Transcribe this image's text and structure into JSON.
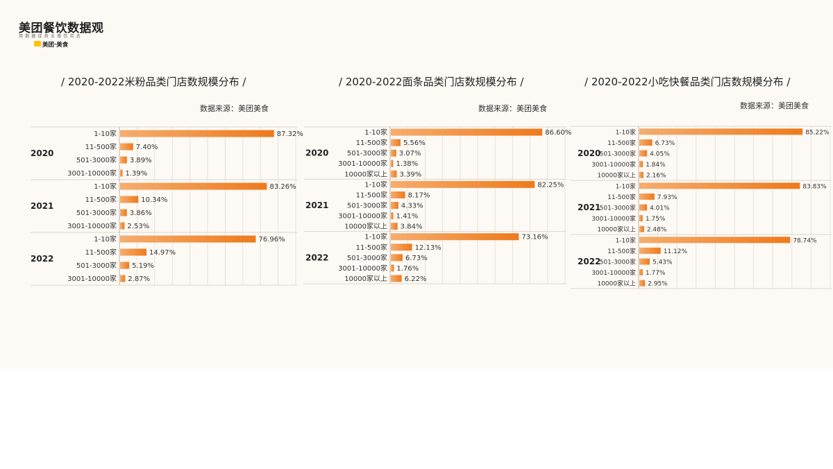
{
  "logo": {
    "title": "美团餐饮数据观",
    "tagline": "用数据促商业餐饮百态",
    "brand": "美团·美食"
  },
  "colors": {
    "bar_gradient_start": "#f5ad6e",
    "bar_gradient_end": "#ee7a1c",
    "background": "#fdf9f4"
  },
  "chart_data": [
    {
      "type": "bar",
      "title": "/ 2020-2022米粉品类门店数规模分布 /",
      "source": "数据来源：美团美食",
      "orientation": "horizontal",
      "xlim": [
        0,
        100
      ],
      "groups": [
        {
          "year": "2020",
          "categories": [
            "1-10家",
            "11-500家",
            "501-3000家",
            "3001-10000家"
          ],
          "values": [
            87.32,
            7.4,
            3.89,
            1.39
          ],
          "labels": [
            "87.32%",
            "7.40%",
            "3.89%",
            "1.39%"
          ]
        },
        {
          "year": "2021",
          "categories": [
            "1-10家",
            "11-500家",
            "501-3000家",
            "3001-10000家"
          ],
          "values": [
            83.26,
            10.34,
            3.86,
            2.53
          ],
          "labels": [
            "83.26%",
            "10.34%",
            "3.86%",
            "2.53%"
          ]
        },
        {
          "year": "2022",
          "categories": [
            "1-10家",
            "11-500家",
            "501-3000家",
            "3001-10000家"
          ],
          "values": [
            76.96,
            14.97,
            5.19,
            2.87
          ],
          "labels": [
            "76.96%",
            "14.97%",
            "5.19%",
            "2.87%"
          ]
        }
      ]
    },
    {
      "type": "bar",
      "title": "/ 2020-2022面条品类门店数规模分布 /",
      "source": "数据来源：美团美食",
      "orientation": "horizontal",
      "xlim": [
        0,
        100
      ],
      "groups": [
        {
          "year": "2020",
          "categories": [
            "1-10家",
            "11-500家",
            "501-3000家",
            "3001-10000家",
            "10000家以上"
          ],
          "values": [
            86.6,
            5.56,
            3.07,
            1.38,
            3.39
          ],
          "labels": [
            "86.60%",
            "5.56%",
            "3.07%",
            "1.38%",
            "3.39%"
          ]
        },
        {
          "year": "2021",
          "categories": [
            "1-10家",
            "11-500家",
            "501-3000家",
            "3001-10000家",
            "10000家以上"
          ],
          "values": [
            82.25,
            8.17,
            4.33,
            1.41,
            3.84
          ],
          "labels": [
            "82.25%",
            "8.17%",
            "4.33%",
            "1.41%",
            "3.84%"
          ]
        },
        {
          "year": "2022",
          "categories": [
            "1-10家",
            "11-500家",
            "501-3000家",
            "3001-10000家",
            "10000家以上"
          ],
          "values": [
            73.16,
            12.13,
            6.73,
            1.76,
            6.22
          ],
          "labels": [
            "73.16%",
            "12.13%",
            "6.73%",
            "1.76%",
            "6.22%"
          ]
        }
      ]
    },
    {
      "type": "bar",
      "title": "/ 2020-2022小吃快餐品类门店数规模分布 /",
      "source": "数据来源：美团美食",
      "orientation": "horizontal",
      "xlim": [
        0,
        100
      ],
      "groups": [
        {
          "year": "2020",
          "categories": [
            "1-10家",
            "11-500家",
            "501-3000家",
            "3001-10000家",
            "10000家以上"
          ],
          "values": [
            85.22,
            6.73,
            4.05,
            1.84,
            2.16
          ],
          "labels": [
            "85.22%",
            "6.73%",
            "4.05%",
            "1.84%",
            "2.16%"
          ]
        },
        {
          "year": "2021",
          "categories": [
            "1-10家",
            "11-500家",
            "501-3000家",
            "3001-10000家",
            "10000家以上"
          ],
          "values": [
            83.83,
            7.93,
            4.01,
            1.75,
            2.48
          ],
          "labels": [
            "83.83%",
            "7.93%",
            "4.01%",
            "1.75%",
            "2.48%"
          ]
        },
        {
          "year": "2022",
          "categories": [
            "1-10家",
            "11-500家",
            "501-3000家",
            "3001-10000家",
            "10000家以上"
          ],
          "values": [
            78.74,
            11.12,
            5.43,
            1.77,
            2.95
          ],
          "labels": [
            "78.74%",
            "11.12%",
            "5.43%",
            "1.77%",
            "2.95%"
          ]
        }
      ]
    }
  ]
}
